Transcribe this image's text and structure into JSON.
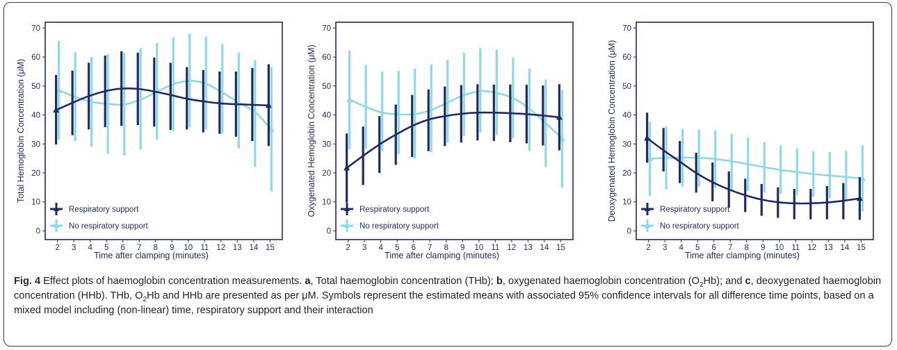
{
  "chart_data": [
    {
      "type": "line",
      "panel": "a",
      "ylabel": "Total Hemoglobin Concentration (μM)",
      "xlabel": "Time after clamping (minutes)",
      "x": [
        2,
        3,
        4,
        5,
        6,
        7,
        8,
        9,
        10,
        11,
        12,
        13,
        14,
        15
      ],
      "ylim": [
        -3,
        72
      ],
      "yticks": [
        0,
        10,
        20,
        30,
        40,
        50,
        60,
        70
      ],
      "legend_placement": "bottom-left",
      "series": [
        {
          "name": "Respiratory support",
          "color": "#1f2b5e",
          "values": [
            41.7,
            44.2,
            46.5,
            48.2,
            49.1,
            49.0,
            48.1,
            46.9,
            45.6,
            44.7,
            44.0,
            43.7,
            43.5,
            43.3
          ],
          "lower": [
            29.8,
            33.0,
            35.0,
            35.8,
            36.2,
            36.5,
            36.0,
            34.8,
            35.0,
            34.0,
            33.5,
            32.5,
            31.0,
            29.3
          ],
          "upper": [
            53.8,
            55.3,
            58.0,
            60.5,
            62.0,
            61.5,
            59.8,
            58.0,
            56.5,
            55.5,
            55.0,
            55.0,
            56.2,
            57.5
          ]
        },
        {
          "name": "No respiratory support",
          "color": "#8fd8e6",
          "values": [
            48.5,
            46.2,
            44.5,
            43.8,
            43.6,
            45.3,
            48.0,
            50.6,
            51.8,
            50.8,
            47.7,
            44.3,
            41.0,
            35.0
          ],
          "lower": [
            31.5,
            31.0,
            29.0,
            26.5,
            26.0,
            28.0,
            31.5,
            34.5,
            35.7,
            35.0,
            33.5,
            28.5,
            22.0,
            13.5
          ],
          "upper": [
            65.5,
            61.6,
            60.0,
            61.0,
            61.5,
            63.0,
            64.8,
            66.8,
            68.0,
            67.0,
            64.5,
            61.5,
            59.0,
            56.5
          ]
        }
      ]
    },
    {
      "type": "line",
      "panel": "b",
      "ylabel": "Oxygenated Hemoglobin Concentration (μM)",
      "xlabel": "Time after clamping (minutes)",
      "x": [
        2,
        3,
        4,
        5,
        6,
        7,
        8,
        9,
        10,
        11,
        12,
        13,
        14,
        15
      ],
      "ylim": [
        -3,
        72
      ],
      "yticks": [
        0,
        10,
        20,
        30,
        40,
        50,
        60,
        70
      ],
      "legend_placement": "bottom-left",
      "series": [
        {
          "name": "Respiratory support",
          "color": "#1f2b5e",
          "values": [
            21.7,
            25.9,
            29.8,
            33.2,
            36.2,
            38.4,
            39.6,
            40.4,
            40.8,
            40.8,
            40.6,
            40.3,
            39.8,
            39.2
          ],
          "lower": [
            9.8,
            15.8,
            20.0,
            22.8,
            25.5,
            27.5,
            29.3,
            30.5,
            31.2,
            31.0,
            30.6,
            30.2,
            29.5,
            27.8
          ],
          "upper": [
            33.6,
            36.0,
            39.6,
            43.6,
            46.9,
            48.8,
            49.8,
            50.3,
            50.6,
            50.5,
            50.5,
            50.4,
            50.2,
            50.6
          ]
        },
        {
          "name": "No respiratory support",
          "color": "#8fd8e6",
          "values": [
            45.3,
            42.8,
            40.8,
            40.2,
            40.3,
            41.7,
            44.3,
            46.8,
            48.2,
            47.6,
            45.8,
            42.2,
            37.2,
            31.8
          ],
          "lower": [
            28.2,
            28.3,
            27.5,
            26.5,
            25.0,
            27.2,
            30.5,
            32.8,
            34.0,
            33.0,
            32.0,
            27.5,
            22.0,
            15.0
          ],
          "upper": [
            62.2,
            57.3,
            55.0,
            55.2,
            56.0,
            57.5,
            59.0,
            61.5,
            63.0,
            62.5,
            59.8,
            56.0,
            52.2,
            48.6
          ]
        }
      ]
    },
    {
      "type": "line",
      "panel": "c",
      "ylabel": "Deoxygenated Hemoglobin Concentration (μM)",
      "xlabel": "Time after clamping (minutes)",
      "x": [
        2,
        3,
        4,
        5,
        6,
        7,
        8,
        9,
        10,
        11,
        12,
        13,
        14,
        15
      ],
      "ylim": [
        -3,
        72
      ],
      "yticks": [
        0,
        10,
        20,
        30,
        40,
        50,
        60,
        70
      ],
      "legend_placement": "bottom-left",
      "series": [
        {
          "name": "Respiratory support",
          "color": "#1f2b5e",
          "values": [
            32.0,
            27.8,
            23.9,
            20.0,
            16.8,
            14.3,
            12.3,
            10.8,
            9.9,
            9.5,
            9.5,
            9.8,
            10.4,
            11.2
          ],
          "lower": [
            23.5,
            20.5,
            16.5,
            13.2,
            10.2,
            8.0,
            6.5,
            5.2,
            4.5,
            4.0,
            4.0,
            4.0,
            4.0,
            3.8
          ],
          "upper": [
            40.8,
            35.5,
            31.0,
            27.0,
            23.6,
            20.5,
            18.0,
            16.2,
            15.0,
            14.5,
            14.5,
            15.5,
            16.5,
            18.5
          ]
        },
        {
          "name": "No respiratory support",
          "color": "#8fd8e6",
          "values": [
            24.9,
            25.2,
            25.3,
            25.2,
            24.8,
            24.0,
            23.0,
            22.0,
            21.0,
            20.3,
            19.6,
            19.1,
            18.6,
            18.1
          ],
          "lower": [
            12.0,
            14.3,
            15.3,
            15.3,
            14.8,
            14.3,
            13.8,
            13.3,
            12.8,
            12.3,
            11.8,
            11.3,
            10.3,
            6.7
          ],
          "upper": [
            37.6,
            36.0,
            35.2,
            35.0,
            34.6,
            33.5,
            32.2,
            30.6,
            29.5,
            28.5,
            27.5,
            27.2,
            27.6,
            29.4
          ]
        }
      ]
    }
  ],
  "caption": {
    "fig_label": "Fig. 4",
    "p1": " Effect plots of haemoglobin concentration measurements. ",
    "a": "a",
    "p2": ", Total haemoglobin concentration (THb); ",
    "b": "b",
    "p3": ", oxygenated haemoglobin concentration (O",
    "sub1": "2",
    "p4": "Hb); and ",
    "c": "c",
    "p5": ", deoxygenated haemoglobin concentration (HHb). THb, O",
    "sub2": "2",
    "p6": "Hb and HHb are presented as per μM. Symbols represent the estimated means with associated 95% confidence intervals for all difference time points, based on a mixed model including (non-linear) time, respiratory support and their interaction"
  }
}
